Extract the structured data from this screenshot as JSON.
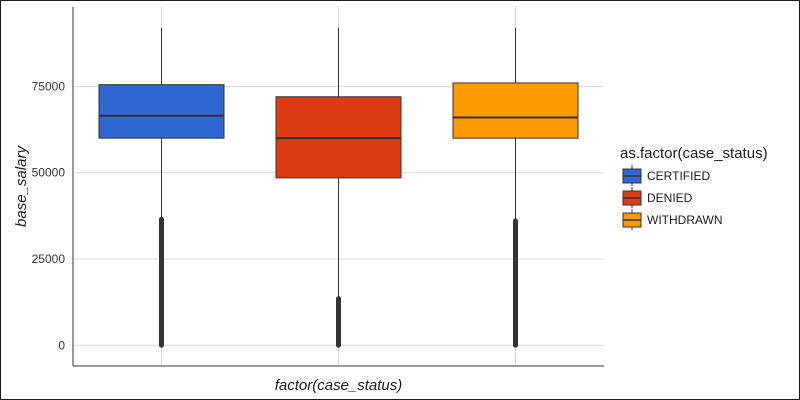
{
  "chart_data": {
    "type": "boxplot",
    "title": "",
    "xlabel": "factor(case_status)",
    "ylabel": "base_salary",
    "ylim": [
      -6000,
      98000
    ],
    "yticks": [
      0,
      25000,
      50000,
      75000
    ],
    "ytick_labels": [
      "0",
      "25000",
      "50000",
      "75000"
    ],
    "grid": true,
    "legend": {
      "title": "as.factor(case_status)",
      "position": "right"
    },
    "series": [
      {
        "name": "CERTIFIED",
        "color": "#2f66d4",
        "whisker_low": 0,
        "q1": 60000,
        "median": 66500,
        "q3": 75500,
        "whisker_high": 92000,
        "outliers_range": [
          0,
          36500
        ]
      },
      {
        "name": "DENIED",
        "color": "#dc3b14",
        "whisker_low": 0,
        "q1": 48500,
        "median": 60000,
        "q3": 72000,
        "whisker_high": 92000,
        "outliers_range": [
          0,
          13500
        ]
      },
      {
        "name": "WITHDRAWN",
        "color": "#fd9a01",
        "whisker_low": 0,
        "q1": 60000,
        "median": 66000,
        "q3": 76000,
        "whisker_high": 92000,
        "outliers_range": [
          0,
          36000
        ]
      }
    ]
  }
}
